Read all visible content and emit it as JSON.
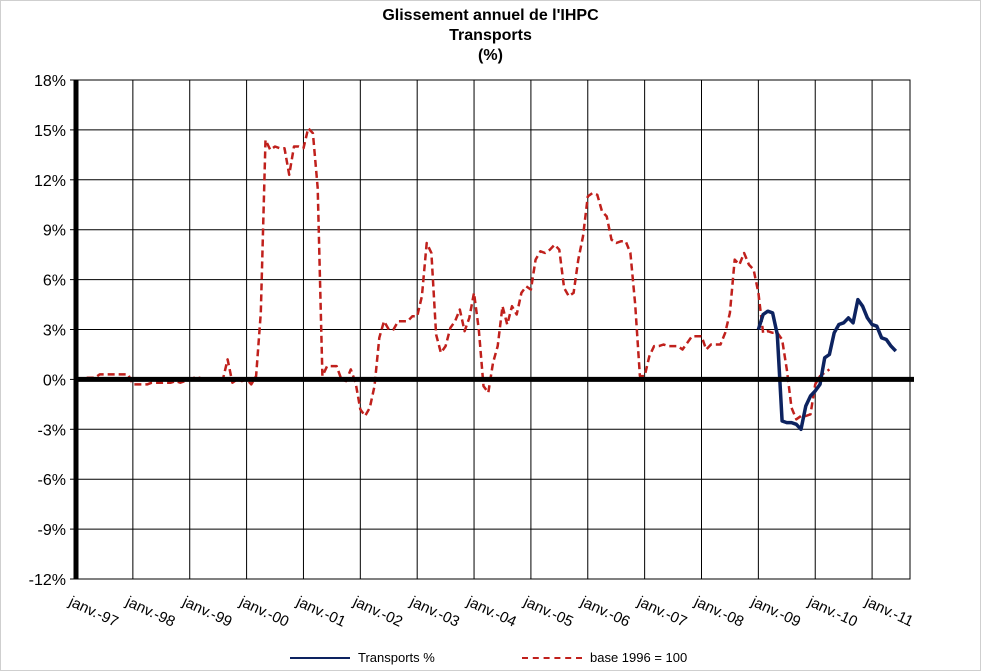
{
  "chart_data": {
    "type": "line",
    "title": "Glissement annuel de l'IHPC",
    "subtitle": "Transports",
    "unit": "(%)",
    "y_ticks": [
      "18%",
      "15%",
      "12%",
      "9%",
      "6%",
      "3%",
      "0%",
      "-3%",
      "-6%",
      "-9%",
      "-12%"
    ],
    "ylim": [
      -12,
      18
    ],
    "x_ticks": [
      "janv.-97",
      "janv.-98",
      "janv.-99",
      "janv.-00",
      "janv.-01",
      "janv.-02",
      "janv.-03",
      "janv.-04",
      "janv.-05",
      "janv.-06",
      "janv.-07",
      "janv.-08",
      "janv.-09",
      "janv.-10",
      "janv.-11"
    ],
    "xlim": [
      "1997-01",
      "2011-09"
    ],
    "grid": true,
    "legend_position": "bottom",
    "series": [
      {
        "name": "Transports %",
        "color": "#0d2360",
        "style": "solid",
        "points": [
          [
            "2009-01",
            3.0
          ],
          [
            "2009-02",
            3.9
          ],
          [
            "2009-03",
            4.1
          ],
          [
            "2009-04",
            4.0
          ],
          [
            "2009-05",
            2.7
          ],
          [
            "2009-06",
            -2.5
          ],
          [
            "2009-07",
            -2.6
          ],
          [
            "2009-08",
            -2.6
          ],
          [
            "2009-09",
            -2.7
          ],
          [
            "2009-10",
            -3.0
          ],
          [
            "2009-11",
            -1.6
          ],
          [
            "2009-12",
            -1.0
          ],
          [
            "2010-01",
            -0.7
          ],
          [
            "2010-02",
            -0.3
          ],
          [
            "2010-03",
            1.3
          ],
          [
            "2010-04",
            1.5
          ],
          [
            "2010-05",
            2.8
          ],
          [
            "2010-06",
            3.3
          ],
          [
            "2010-07",
            3.4
          ],
          [
            "2010-08",
            3.7
          ],
          [
            "2010-09",
            3.4
          ],
          [
            "2010-10",
            4.8
          ],
          [
            "2010-11",
            4.4
          ],
          [
            "2010-12",
            3.7
          ],
          [
            "2011-01",
            3.3
          ],
          [
            "2011-02",
            3.2
          ],
          [
            "2011-03",
            2.5
          ],
          [
            "2011-04",
            2.4
          ],
          [
            "2011-05",
            2.0
          ],
          [
            "2011-06",
            1.7
          ]
        ]
      },
      {
        "name": "base 1996 = 100",
        "color": "#c0201c",
        "style": "dashed",
        "points": [
          [
            "1997-01",
            0.0
          ],
          [
            "1997-02",
            0.0
          ],
          [
            "1997-03",
            0.1
          ],
          [
            "1997-04",
            0.1
          ],
          [
            "1997-05",
            0.1
          ],
          [
            "1997-06",
            0.3
          ],
          [
            "1997-07",
            0.3
          ],
          [
            "1997-08",
            0.3
          ],
          [
            "1997-09",
            0.3
          ],
          [
            "1997-10",
            0.3
          ],
          [
            "1997-11",
            0.3
          ],
          [
            "1997-12",
            0.3
          ],
          [
            "1998-01",
            -0.3
          ],
          [
            "1998-02",
            -0.3
          ],
          [
            "1998-03",
            -0.3
          ],
          [
            "1998-04",
            -0.3
          ],
          [
            "1998-05",
            -0.2
          ],
          [
            "1998-06",
            -0.2
          ],
          [
            "1998-07",
            -0.2
          ],
          [
            "1998-08",
            -0.2
          ],
          [
            "1998-09",
            -0.2
          ],
          [
            "1998-10",
            -0.1
          ],
          [
            "1998-11",
            -0.2
          ],
          [
            "1998-12",
            -0.1
          ],
          [
            "1999-01",
            0.0
          ],
          [
            "1999-02",
            0.1
          ],
          [
            "1999-03",
            0.1
          ],
          [
            "1999-04",
            0.0
          ],
          [
            "1999-05",
            0.0
          ],
          [
            "1999-06",
            0.0
          ],
          [
            "1999-07",
            0.0
          ],
          [
            "1999-08",
            0.0
          ],
          [
            "1999-09",
            1.2
          ],
          [
            "1999-10",
            -0.2
          ],
          [
            "1999-11",
            0.0
          ],
          [
            "1999-12",
            -0.1
          ],
          [
            "2000-01",
            0.0
          ],
          [
            "2000-02",
            -0.3
          ],
          [
            "2000-03",
            0.2
          ],
          [
            "2000-04",
            4.0
          ],
          [
            "2000-05",
            14.4
          ],
          [
            "2000-06",
            13.8
          ],
          [
            "2000-07",
            14.0
          ],
          [
            "2000-08",
            13.9
          ],
          [
            "2000-09",
            13.9
          ],
          [
            "2000-10",
            12.3
          ],
          [
            "2000-11",
            14.0
          ],
          [
            "2000-12",
            14.0
          ],
          [
            "2001-01",
            13.9
          ],
          [
            "2001-02",
            15.1
          ],
          [
            "2001-03",
            14.8
          ],
          [
            "2001-04",
            11.5
          ],
          [
            "2001-05",
            0.2
          ],
          [
            "2001-06",
            0.8
          ],
          [
            "2001-07",
            0.8
          ],
          [
            "2001-08",
            0.8
          ],
          [
            "2001-09",
            0.0
          ],
          [
            "2001-10",
            -0.1
          ],
          [
            "2001-11",
            0.6
          ],
          [
            "2001-12",
            -0.2
          ],
          [
            "2002-01",
            -1.8
          ],
          [
            "2002-02",
            -2.2
          ],
          [
            "2002-03",
            -1.7
          ],
          [
            "2002-04",
            -0.4
          ],
          [
            "2002-05",
            2.5
          ],
          [
            "2002-06",
            3.5
          ],
          [
            "2002-07",
            3.0
          ],
          [
            "2002-08",
            3.0
          ],
          [
            "2002-09",
            3.5
          ],
          [
            "2002-10",
            3.5
          ],
          [
            "2002-11",
            3.5
          ],
          [
            "2002-12",
            3.8
          ],
          [
            "2003-01",
            3.8
          ],
          [
            "2003-02",
            5.0
          ],
          [
            "2003-03",
            8.2
          ],
          [
            "2003-04",
            7.6
          ],
          [
            "2003-05",
            2.7
          ],
          [
            "2003-06",
            1.6
          ],
          [
            "2003-07",
            2.0
          ],
          [
            "2003-08",
            3.1
          ],
          [
            "2003-09",
            3.5
          ],
          [
            "2003-10",
            4.2
          ],
          [
            "2003-11",
            2.9
          ],
          [
            "2003-12",
            3.7
          ],
          [
            "2004-01",
            5.2
          ],
          [
            "2004-02",
            3.0
          ],
          [
            "2004-03",
            -0.4
          ],
          [
            "2004-04",
            -0.8
          ],
          [
            "2004-05",
            1.0
          ],
          [
            "2004-06",
            2.0
          ],
          [
            "2004-07",
            4.4
          ],
          [
            "2004-08",
            3.3
          ],
          [
            "2004-09",
            4.4
          ],
          [
            "2004-10",
            3.9
          ],
          [
            "2004-11",
            5.2
          ],
          [
            "2004-12",
            5.6
          ],
          [
            "2005-01",
            5.4
          ],
          [
            "2005-02",
            7.2
          ],
          [
            "2005-03",
            7.7
          ],
          [
            "2005-04",
            7.6
          ],
          [
            "2005-05",
            7.8
          ],
          [
            "2005-06",
            8.1
          ],
          [
            "2005-07",
            7.8
          ],
          [
            "2005-08",
            5.5
          ],
          [
            "2005-09",
            5.0
          ],
          [
            "2005-10",
            5.2
          ],
          [
            "2005-11",
            7.2
          ],
          [
            "2005-12",
            8.6
          ],
          [
            "2006-01",
            11.0
          ],
          [
            "2006-02",
            11.2
          ],
          [
            "2006-03",
            11.1
          ],
          [
            "2006-04",
            10.1
          ],
          [
            "2006-05",
            9.8
          ],
          [
            "2006-06",
            8.4
          ],
          [
            "2006-07",
            8.2
          ],
          [
            "2006-08",
            8.3
          ],
          [
            "2006-09",
            8.3
          ],
          [
            "2006-10",
            7.6
          ],
          [
            "2006-11",
            4.5
          ],
          [
            "2006-12",
            0.2
          ],
          [
            "2007-01",
            0.2
          ],
          [
            "2007-02",
            1.4
          ],
          [
            "2007-03",
            2.0
          ],
          [
            "2007-04",
            2.0
          ],
          [
            "2007-05",
            2.1
          ],
          [
            "2007-06",
            2.0
          ],
          [
            "2007-07",
            2.0
          ],
          [
            "2007-08",
            2.0
          ],
          [
            "2007-09",
            1.8
          ],
          [
            "2007-10",
            2.2
          ],
          [
            "2007-11",
            2.6
          ],
          [
            "2007-12",
            2.6
          ],
          [
            "2008-01",
            2.6
          ],
          [
            "2008-02",
            1.8
          ],
          [
            "2008-03",
            2.1
          ],
          [
            "2008-04",
            2.1
          ],
          [
            "2008-05",
            2.1
          ],
          [
            "2008-06",
            2.8
          ],
          [
            "2008-07",
            4.0
          ],
          [
            "2008-08",
            7.2
          ],
          [
            "2008-09",
            6.9
          ],
          [
            "2008-10",
            7.6
          ],
          [
            "2008-11",
            6.9
          ],
          [
            "2008-12",
            6.6
          ],
          [
            "2009-01",
            5.2
          ],
          [
            "2009-02",
            2.8
          ],
          [
            "2009-03",
            2.9
          ],
          [
            "2009-04",
            2.8
          ],
          [
            "2009-05",
            2.8
          ],
          [
            "2009-06",
            2.4
          ],
          [
            "2009-07",
            0.6
          ],
          [
            "2009-08",
            -1.7
          ],
          [
            "2009-09",
            -2.4
          ],
          [
            "2009-10",
            -2.2
          ],
          [
            "2009-11",
            -2.2
          ],
          [
            "2009-12",
            -2.1
          ],
          [
            "2010-01",
            -0.3
          ],
          [
            "2010-02",
            0.2
          ],
          [
            "2010-03",
            0.4
          ],
          [
            "2010-04",
            0.6
          ]
        ]
      }
    ]
  }
}
